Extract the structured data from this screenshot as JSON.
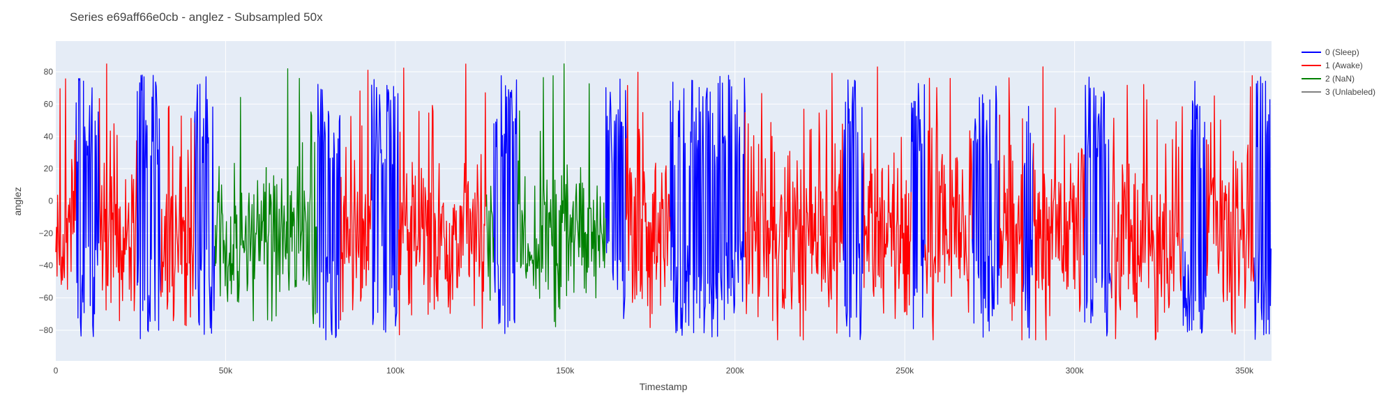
{
  "chart_data": {
    "type": "line",
    "title": "Series e69aff66e0cb - anglez - Subsampled 50x",
    "xlabel": "Timestamp",
    "ylabel": "anglez",
    "xlim": [
      0,
      358000
    ],
    "ylim": [
      -99,
      99
    ],
    "x_ticks": [
      0,
      50000,
      100000,
      150000,
      200000,
      250000,
      300000,
      350000
    ],
    "x_tick_labels": [
      "0",
      "50k",
      "100k",
      "150k",
      "200k",
      "250k",
      "300k",
      "350k"
    ],
    "y_ticks": [
      -80,
      -60,
      -40,
      -20,
      0,
      20,
      40,
      60,
      80
    ],
    "y_tick_labels": [
      "−80",
      "−60",
      "−40",
      "−20",
      "0",
      "20",
      "40",
      "60",
      "80"
    ],
    "grid": true,
    "legend_position": "top-right",
    "series": [
      {
        "name": "0 (Sleep)",
        "color": "#0000ff"
      },
      {
        "name": "1 (Awake)",
        "color": "#ff0000"
      },
      {
        "name": "2 (NaN)",
        "color": "#008000"
      },
      {
        "name": "3 (Unlabeled)",
        "color": "#808080"
      }
    ],
    "segments": [
      {
        "series": 1,
        "x_start": 0,
        "x_end": 6000
      },
      {
        "series": 0,
        "x_start": 6000,
        "x_end": 13000
      },
      {
        "series": 1,
        "x_start": 13000,
        "x_end": 24000
      },
      {
        "series": 0,
        "x_start": 24000,
        "x_end": 31000
      },
      {
        "series": 1,
        "x_start": 31000,
        "x_end": 41000
      },
      {
        "series": 0,
        "x_start": 41000,
        "x_end": 47000
      },
      {
        "series": 2,
        "x_start": 47000,
        "x_end": 62000
      },
      {
        "series": 2,
        "x_start": 62000,
        "x_end": 77000
      },
      {
        "series": 0,
        "x_start": 77000,
        "x_end": 84000
      },
      {
        "series": 1,
        "x_start": 84000,
        "x_end": 93000
      },
      {
        "series": 0,
        "x_start": 93000,
        "x_end": 101000
      },
      {
        "series": 1,
        "x_start": 101000,
        "x_end": 120000
      },
      {
        "series": 1,
        "x_start": 120000,
        "x_end": 127000
      },
      {
        "series": 2,
        "x_start": 127000,
        "x_end": 129000
      },
      {
        "series": 0,
        "x_start": 129000,
        "x_end": 136000
      },
      {
        "series": 2,
        "x_start": 136000,
        "x_end": 162000
      },
      {
        "series": 0,
        "x_start": 162000,
        "x_end": 168000
      },
      {
        "series": 1,
        "x_start": 168000,
        "x_end": 181000
      },
      {
        "series": 0,
        "x_start": 181000,
        "x_end": 203000
      },
      {
        "series": 1,
        "x_start": 203000,
        "x_end": 232000
      },
      {
        "series": 0,
        "x_start": 232000,
        "x_end": 238000
      },
      {
        "series": 1,
        "x_start": 238000,
        "x_end": 252000
      },
      {
        "series": 0,
        "x_start": 252000,
        "x_end": 256000
      },
      {
        "series": 1,
        "x_start": 256000,
        "x_end": 270000
      },
      {
        "series": 0,
        "x_start": 270000,
        "x_end": 278000
      },
      {
        "series": 1,
        "x_start": 278000,
        "x_end": 285000
      },
      {
        "series": 0,
        "x_start": 285000,
        "x_end": 288000
      },
      {
        "series": 1,
        "x_start": 288000,
        "x_end": 303000
      },
      {
        "series": 0,
        "x_start": 303000,
        "x_end": 311000
      },
      {
        "series": 1,
        "x_start": 311000,
        "x_end": 332000
      },
      {
        "series": 0,
        "x_start": 332000,
        "x_end": 339000
      },
      {
        "series": 1,
        "x_start": 339000,
        "x_end": 353000
      },
      {
        "series": 0,
        "x_start": 353000,
        "x_end": 358000
      }
    ]
  }
}
